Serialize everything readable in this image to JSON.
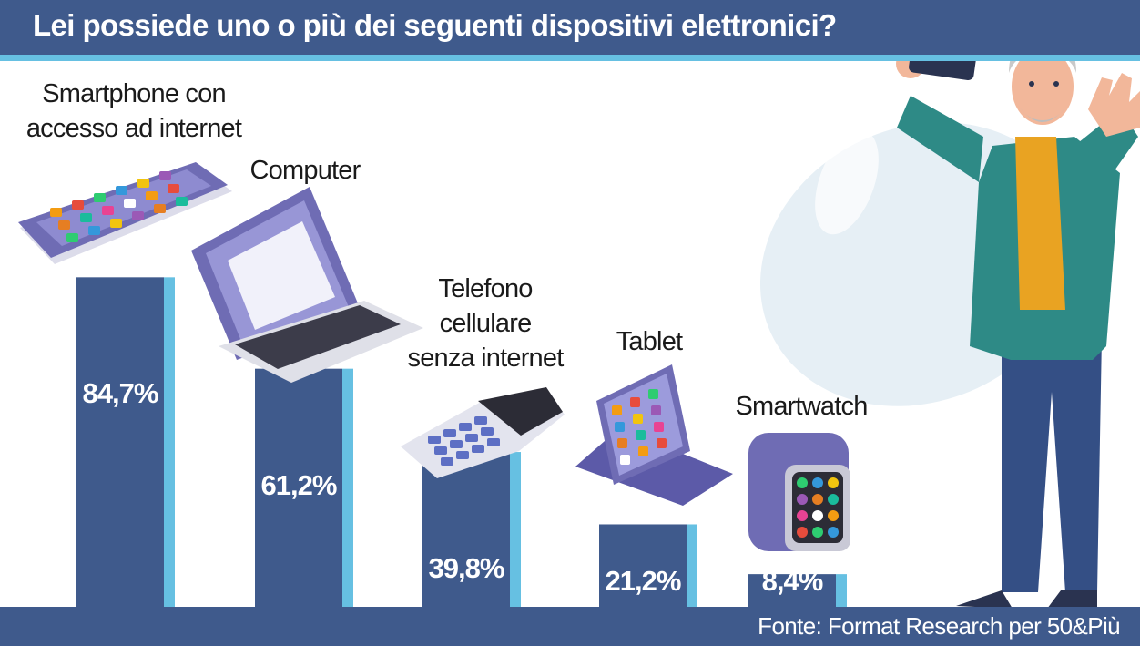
{
  "title": "Lei possiede uno o più dei seguenti dispositivi elettronici?",
  "source": "Fonte: Format Research per 50&Più",
  "colors": {
    "bar_dark": "#3f5a8c",
    "bar_accent": "#66c0e2",
    "header": "#3f5a8c",
    "device_purple": "#6f6cb4"
  },
  "chart_data": {
    "type": "bar",
    "title": "Lei possiede uno o più dei seguenti dispositivi elettronici?",
    "categories": [
      "Smartphone con accesso ad internet",
      "Computer",
      "Telefono cellulare senza internet",
      "Tablet",
      "Smartwatch"
    ],
    "category_lines": [
      [
        "Smartphone con",
        "accesso ad internet"
      ],
      [
        "Computer"
      ],
      [
        "Telefono",
        "cellulare",
        "senza internet"
      ],
      [
        "Tablet"
      ],
      [
        "Smartwatch"
      ]
    ],
    "values": [
      84.7,
      61.2,
      39.8,
      21.2,
      8.4
    ],
    "value_labels": [
      "84,7%",
      "61,2%",
      "39,8%",
      "21,2%",
      "8,4%"
    ],
    "unit": "%",
    "ylim": [
      0,
      100
    ],
    "grid": false,
    "legend": "none",
    "icons": [
      "smartphone-icon",
      "laptop-icon",
      "feature-phone-icon",
      "tablet-icon",
      "smartwatch-icon"
    ]
  }
}
